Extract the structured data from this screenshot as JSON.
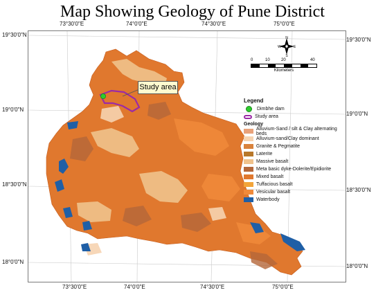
{
  "title": "Map Showing Geology of Pune District",
  "top_ticks": [
    "73°30'0\"E",
    "74°0'0\"E",
    "74°30'0\"E",
    "75°0'0\"E"
  ],
  "bottom_ticks": [
    "73°30'0\"E",
    "74°0'0\"E",
    "74°30'0\"E",
    "75°0'0\"E"
  ],
  "left_ticks": [
    "19°30'0\"N",
    "19°0'0\"N",
    "18°30'0\"N",
    "18°0'0\"N"
  ],
  "right_ticks": [
    "19°30'0\"N",
    "19°0'0\"N",
    "18°30'0\"N",
    "18°0'0\"N"
  ],
  "callout": "Study area",
  "scale": {
    "labels": [
      "0",
      "10",
      "20",
      "40"
    ],
    "unit": "Kilometers"
  },
  "compass": {
    "n": "N",
    "s": "S",
    "e": "E",
    "w": "W"
  },
  "legend": {
    "title": "Legend",
    "dam": "Dimbhe dam",
    "study": "Study area",
    "geology_title": "Geology",
    "items": [
      {
        "label": "Alluvium-Sand / silt & Clay alternating beds",
        "color": "#e9a27a"
      },
      {
        "label": "Alluvium-sand/Clay dominant",
        "color": "#f6d3b0"
      },
      {
        "label": "Granite & Pegmatite",
        "color": "#d9823c"
      },
      {
        "label": "Laterite",
        "color": "#b8782a"
      },
      {
        "label": "Massive basalt",
        "color": "#f0c28c"
      },
      {
        "label": "Meta basic dyke-Dolerite/Epidiorite",
        "color": "#b4673a"
      },
      {
        "label": "Mixed basalt",
        "color": "#e0782e"
      },
      {
        "label": "Tuffacious basalt",
        "color": "#f2a43a"
      },
      {
        "label": "Vesicular basalt",
        "color": "#f08a3a"
      },
      {
        "label": "Waterbody",
        "color": "#1f5fa6"
      }
    ]
  }
}
